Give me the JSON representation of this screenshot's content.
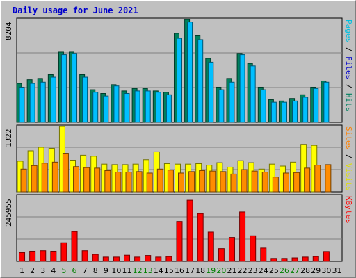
{
  "chart_data": {
    "type": "bar",
    "title": "Daily usage for June 2021",
    "categories": [
      "1",
      "2",
      "3",
      "4",
      "5",
      "6",
      "7",
      "8",
      "9",
      "10",
      "11",
      "12",
      "13",
      "14",
      "15",
      "16",
      "17",
      "18",
      "19",
      "20",
      "21",
      "22",
      "23",
      "24",
      "25",
      "26",
      "27",
      "28",
      "29",
      "30",
      "31"
    ],
    "weekend_days": [
      "5",
      "6",
      "12",
      "13",
      "19",
      "20",
      "26",
      "27"
    ],
    "day_label_colors": {
      "weekday": "#000000",
      "weekend": "#008000"
    },
    "panels": [
      {
        "name": "hits-files-pages",
        "max_label": "8204",
        "ymax": 8204,
        "right_labels": [
          {
            "text": "Pages",
            "color": "#00c0e0"
          },
          {
            "text": " / ",
            "color": "#000000"
          },
          {
            "text": "Files",
            "color": "#0000cc"
          },
          {
            "text": " / ",
            "color": "#000000"
          },
          {
            "text": "Hits",
            "color": "#008060"
          }
        ],
        "series": [
          {
            "name": "Hits",
            "color": "#00805c",
            "values": [
              3100,
              3400,
              3500,
              3800,
              5600,
              5600,
              3800,
              2600,
              2300,
              3000,
              2500,
              2700,
              2700,
              2500,
              2400,
              7100,
              8200,
              6900,
              5100,
              2800,
              3500,
              5500,
              4700,
              2800,
              1800,
              1700,
              1900,
              2200,
              2800,
              3300,
              0
            ]
          },
          {
            "name": "Files",
            "color": "#00bfff",
            "values": [
              2800,
              3100,
              3200,
              3600,
              5400,
              5500,
              3600,
              2400,
              2100,
              2900,
              2300,
              2500,
              2500,
              2400,
              2200,
              6700,
              8000,
              6600,
              4800,
              2600,
              3200,
              5400,
              4500,
              2600,
              1600,
              1600,
              1700,
              2000,
              2700,
              3200,
              0
            ]
          },
          {
            "name": "Pages",
            "color": "#00e0ff",
            "values": [
              0,
              0,
              0,
              0,
              0,
              0,
              0,
              0,
              0,
              0,
              0,
              0,
              0,
              0,
              0,
              0,
              0,
              0,
              0,
              0,
              0,
              0,
              0,
              0,
              0,
              0,
              0,
              0,
              0,
              0,
              0
            ]
          }
        ]
      },
      {
        "name": "visits-sites",
        "max_label": "1322",
        "ymax": 1322,
        "right_labels": [
          {
            "text": "Sites",
            "color": "#ff8000"
          },
          {
            "text": " / ",
            "color": "#000000"
          },
          {
            "text": "Visits",
            "color": "#e0e000"
          }
        ],
        "series": [
          {
            "name": "Visits",
            "color": "#ffff00",
            "values": [
              620,
              830,
              900,
              880,
              1322,
              640,
              740,
              720,
              560,
              550,
              550,
              560,
              650,
              810,
              570,
              560,
              560,
              570,
              540,
              590,
              500,
              630,
              590,
              460,
              560,
              520,
              600,
              960,
              940,
              0,
              0
            ]
          },
          {
            "name": "Sites",
            "color": "#ff8c00",
            "values": [
              460,
              530,
              580,
              600,
              780,
              510,
              490,
              480,
              430,
              400,
              400,
              410,
              380,
              460,
              440,
              380,
              410,
              430,
              420,
              410,
              360,
              450,
              420,
              400,
              300,
              380,
              390,
              480,
              540,
              550,
              0
            ]
          }
        ]
      },
      {
        "name": "kbytes",
        "max_label": "245955",
        "ymax": 245955,
        "right_labels": [
          {
            "text": "KBytes",
            "color": "#ff0000"
          }
        ],
        "series": [
          {
            "name": "KBytes",
            "color": "#ff0000",
            "values": [
              33000,
              38000,
              40000,
              38000,
              70000,
              112000,
              40000,
              26000,
              16000,
              16000,
              23000,
              16000,
              22000,
              16000,
              18000,
              150000,
              230000,
              180000,
              110000,
              48000,
              90000,
              186000,
              96000,
              50000,
              11000,
              11000,
              13000,
              16000,
              18000,
              37000,
              0
            ]
          }
        ]
      }
    ]
  }
}
